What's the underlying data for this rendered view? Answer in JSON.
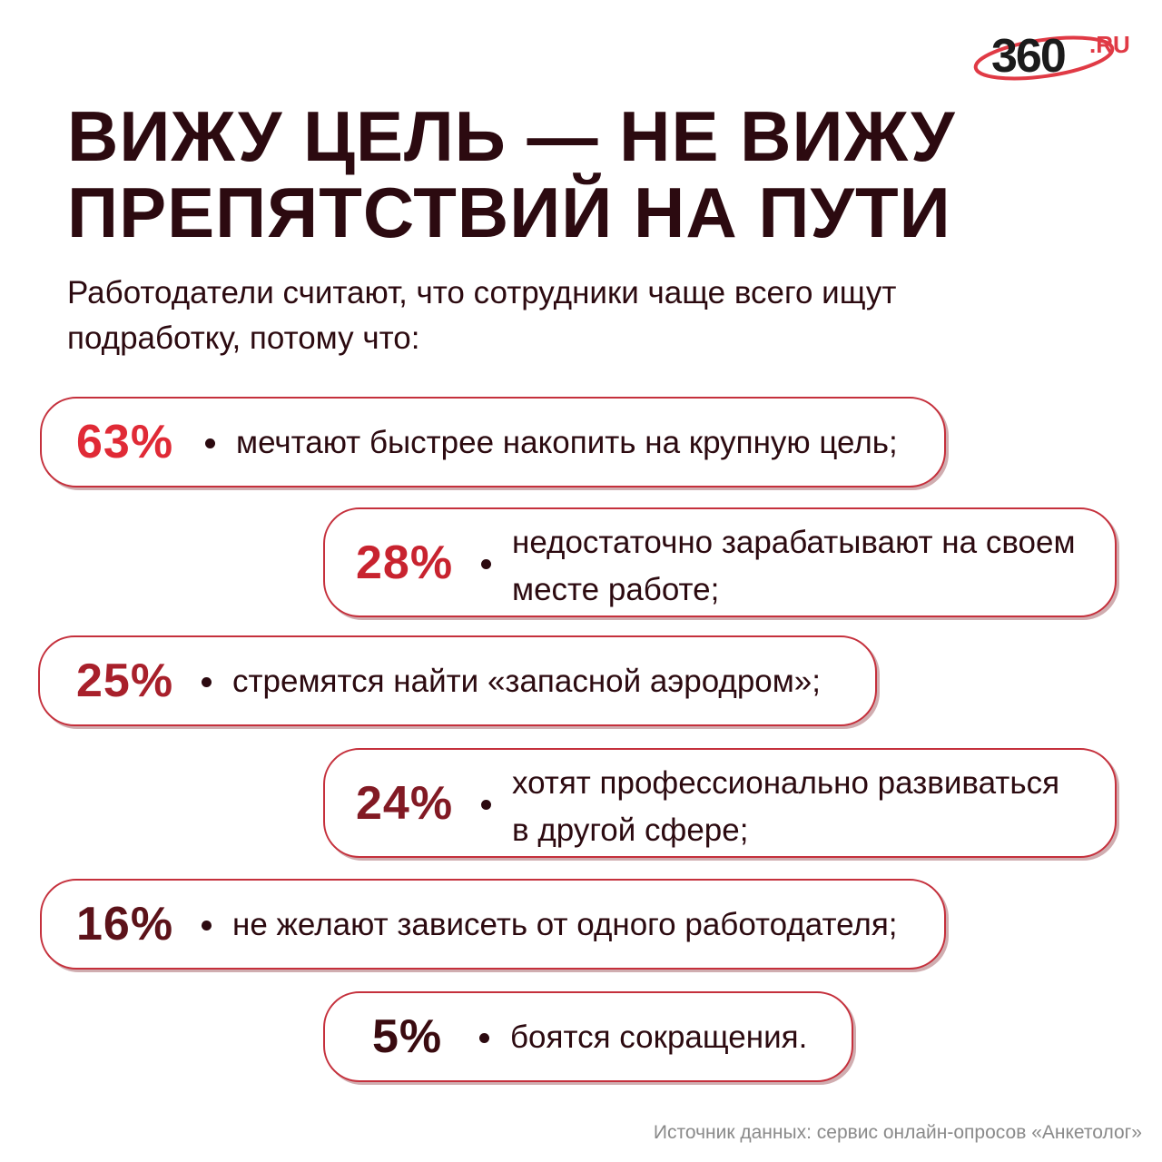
{
  "logo": {
    "number": "360",
    "suffix": ".RU"
  },
  "title": {
    "line1": "ВИЖУ ЦЕЛЬ — НЕ ВИЖУ",
    "line2": "ПРЕПЯТСТВИЙ НА ПУТИ"
  },
  "subtitle": "Работодатели считают, что сотрудники чаще всего ищут подработку, потому что:",
  "items": [
    {
      "percent": "63%",
      "text_line1": "мечтают быстрее накопить на крупную цель;",
      "text_line2": "",
      "color": "#e02a36"
    },
    {
      "percent": "28%",
      "text_line1": "недостаточно зарабатывают на своем",
      "text_line2": "месте работе;",
      "color": "#c8232f"
    },
    {
      "percent": "25%",
      "text_line1": "стремятся найти «запасной аэродром»;",
      "text_line2": "",
      "color": "#a8202b"
    },
    {
      "percent": "24%",
      "text_line1": "хотят профессионально развиваться",
      "text_line2": "в другой сфере;",
      "color": "#821a24"
    },
    {
      "percent": "16%",
      "text_line1": "не желают зависеть от одного работодателя;",
      "text_line2": "",
      "color": "#5c1219"
    },
    {
      "percent": "5%",
      "text_line1": "боятся сокращения.",
      "text_line2": "",
      "color": "#3a0b10"
    }
  ],
  "source": "Источник данных: сервис онлайн-опросов «Анкетолог»"
}
